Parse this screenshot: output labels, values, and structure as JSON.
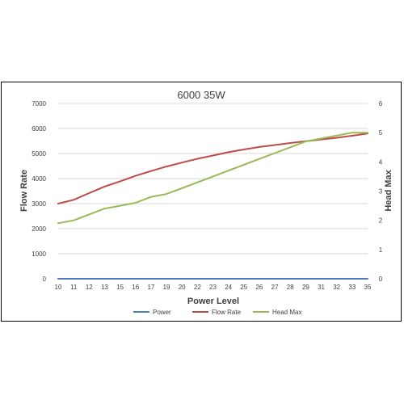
{
  "chart_data": {
    "type": "line",
    "title": "6000 35W",
    "xlabel": "Power Level",
    "ylabel": "Flow Rate",
    "y2label": "Head Max",
    "categories": [
      "10",
      "11",
      "12",
      "13",
      "15",
      "16",
      "17",
      "19",
      "20",
      "22",
      "23",
      "24",
      "25",
      "26",
      "27",
      "28",
      "29",
      "31",
      "32",
      "33",
      "35"
    ],
    "ylim": [
      0,
      7000
    ],
    "y2lim": [
      0,
      6
    ],
    "yticks": [
      "0",
      "1000",
      "2000",
      "3000",
      "4000",
      "5000",
      "6000",
      "7000"
    ],
    "y2ticks": [
      "0",
      "1",
      "2",
      "3",
      "4",
      "5",
      "6"
    ],
    "grid": true,
    "legend_position": "bottom",
    "series": [
      {
        "name": "Power",
        "axis": "left",
        "color": "#4a7ebb",
        "values": [
          0,
          0,
          0,
          0,
          0,
          0,
          0,
          0,
          0,
          0,
          0,
          0,
          0,
          0,
          0,
          0,
          0,
          0,
          0,
          0,
          0
        ]
      },
      {
        "name": "Flow Rate",
        "axis": "left",
        "color": "#be4b48",
        "values": [
          3000,
          3150,
          3420,
          3680,
          3890,
          4110,
          4300,
          4480,
          4640,
          4790,
          4920,
          5050,
          5160,
          5260,
          5340,
          5420,
          5490,
          5560,
          5630,
          5710,
          5800
        ]
      },
      {
        "name": "Head Max",
        "axis": "right",
        "color": "#98b954",
        "values": [
          1.9,
          2.0,
          2.2,
          2.4,
          2.5,
          2.6,
          2.8,
          2.9,
          3.1,
          3.3,
          3.5,
          3.7,
          3.9,
          4.1,
          4.3,
          4.5,
          4.7,
          4.8,
          4.9,
          5.0,
          5.0
        ]
      }
    ]
  }
}
